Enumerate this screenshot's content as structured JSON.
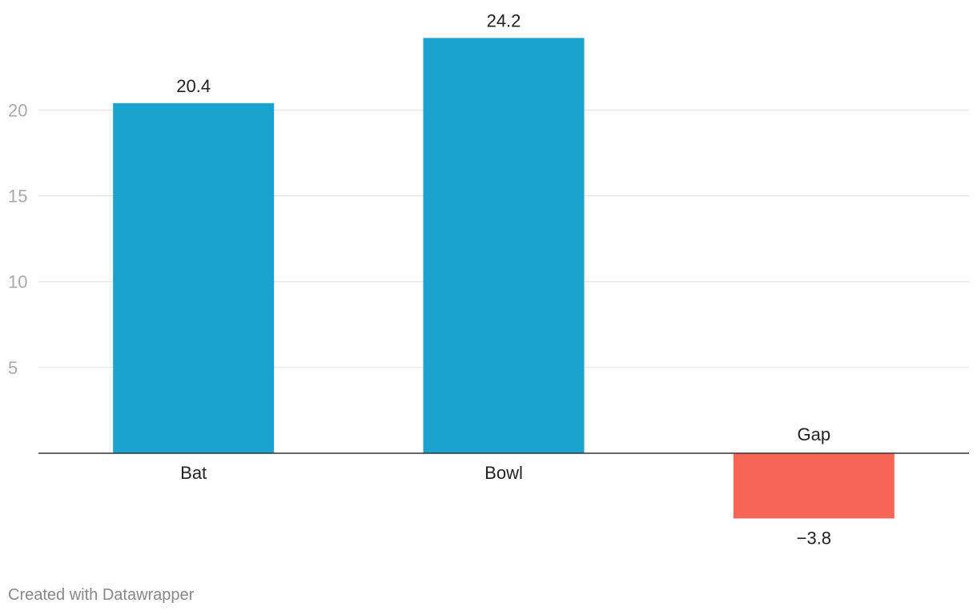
{
  "chart_data": {
    "type": "bar",
    "categories": [
      "Bat",
      "Bowl",
      "Gap"
    ],
    "values": [
      20.4,
      24.2,
      -3.8
    ],
    "value_labels": [
      "20.4",
      "24.2",
      "−3.8"
    ],
    "colors": [
      "#1ba3cf",
      "#1ba3cf",
      "#f66555"
    ],
    "yticks": [
      5,
      10,
      15,
      20
    ],
    "ylim": [
      -3.8,
      24.2
    ],
    "grid": true,
    "title": "",
    "xlabel": "",
    "ylabel": ""
  },
  "footer": {
    "credit": "Created with Datawrapper"
  }
}
